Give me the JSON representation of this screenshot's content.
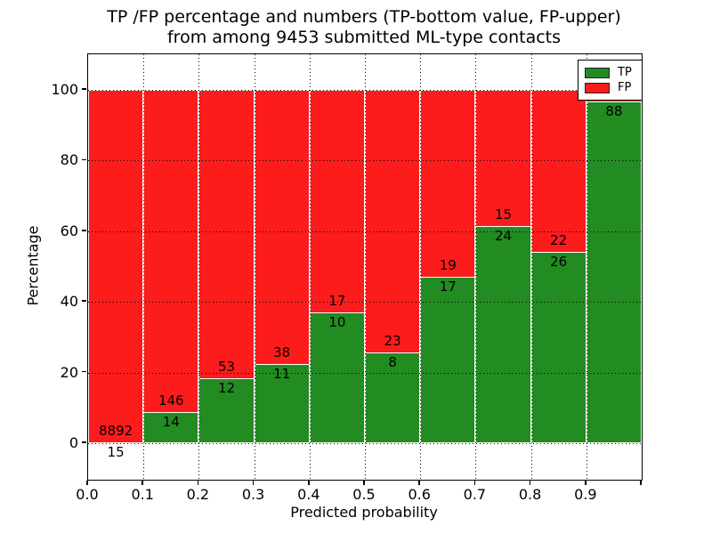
{
  "title": {
    "line1": "TP /FP percentage and numbers (TP-bottom value, FP-upper)",
    "line2": "from among 9453 submitted ML-type contacts"
  },
  "axes": {
    "xlabel": "Predicted probability",
    "ylabel": "Percentage",
    "ytick_values": [
      0,
      20,
      40,
      60,
      80,
      100
    ],
    "ytick_labels": [
      "0",
      "20",
      "40",
      "60",
      "80",
      "100"
    ],
    "xtick_values": [
      0.0,
      0.1,
      0.2,
      0.3,
      0.4,
      0.5,
      0.6,
      0.7,
      0.8,
      0.9,
      1.0
    ],
    "xtick_labels": [
      "0.0",
      "0.1",
      "0.2",
      "0.3",
      "0.4",
      "0.5",
      "0.6",
      "0.7",
      "0.8",
      "0.9",
      ""
    ],
    "grid_style": "dotted"
  },
  "legend": {
    "items": [
      {
        "label": "TP",
        "color": "#228b22"
      },
      {
        "label": "FP",
        "color": "#fc1c1c"
      }
    ]
  },
  "colors": {
    "tp": "#228b22",
    "fp": "#fc1c1c",
    "grid": "#000000",
    "background": "#ffffff"
  },
  "chart_data": {
    "type": "bar",
    "subtype": "stacked-100-percent",
    "title": "TP /FP percentage and numbers (TP-bottom value, FP-upper) from among 9453 submitted ML-type contacts",
    "xlabel": "Predicted probability",
    "ylabel": "Percentage",
    "ylim_visible": [
      -10,
      110
    ],
    "xlim": [
      0.0,
      1.0
    ],
    "categories": [
      "0.0-0.1",
      "0.1-0.2",
      "0.2-0.3",
      "0.3-0.4",
      "0.4-0.5",
      "0.5-0.6",
      "0.6-0.7",
      "0.7-0.8",
      "0.8-0.9",
      "0.9-1.0"
    ],
    "series": [
      {
        "name": "TP",
        "color": "#228b22",
        "counts": [
          15,
          14,
          12,
          11,
          10,
          8,
          17,
          24,
          26,
          88
        ]
      },
      {
        "name": "FP",
        "color": "#fc1c1c",
        "counts": [
          8892,
          146,
          53,
          38,
          17,
          23,
          19,
          15,
          22,
          null
        ]
      }
    ],
    "tp_percent": [
      0.17,
      8.75,
      18.46,
      22.45,
      37.04,
      25.81,
      47.22,
      61.54,
      54.17,
      96.7
    ],
    "bar_labels": {
      "fp": [
        "8892",
        "146",
        "53",
        "38",
        "17",
        "23",
        "19",
        "15",
        "22",
        ""
      ],
      "tp": [
        "15",
        "14",
        "12",
        "11",
        "10",
        "8",
        "17",
        "24",
        "26",
        "88"
      ]
    },
    "legend_position": "upper right",
    "grid": true
  }
}
